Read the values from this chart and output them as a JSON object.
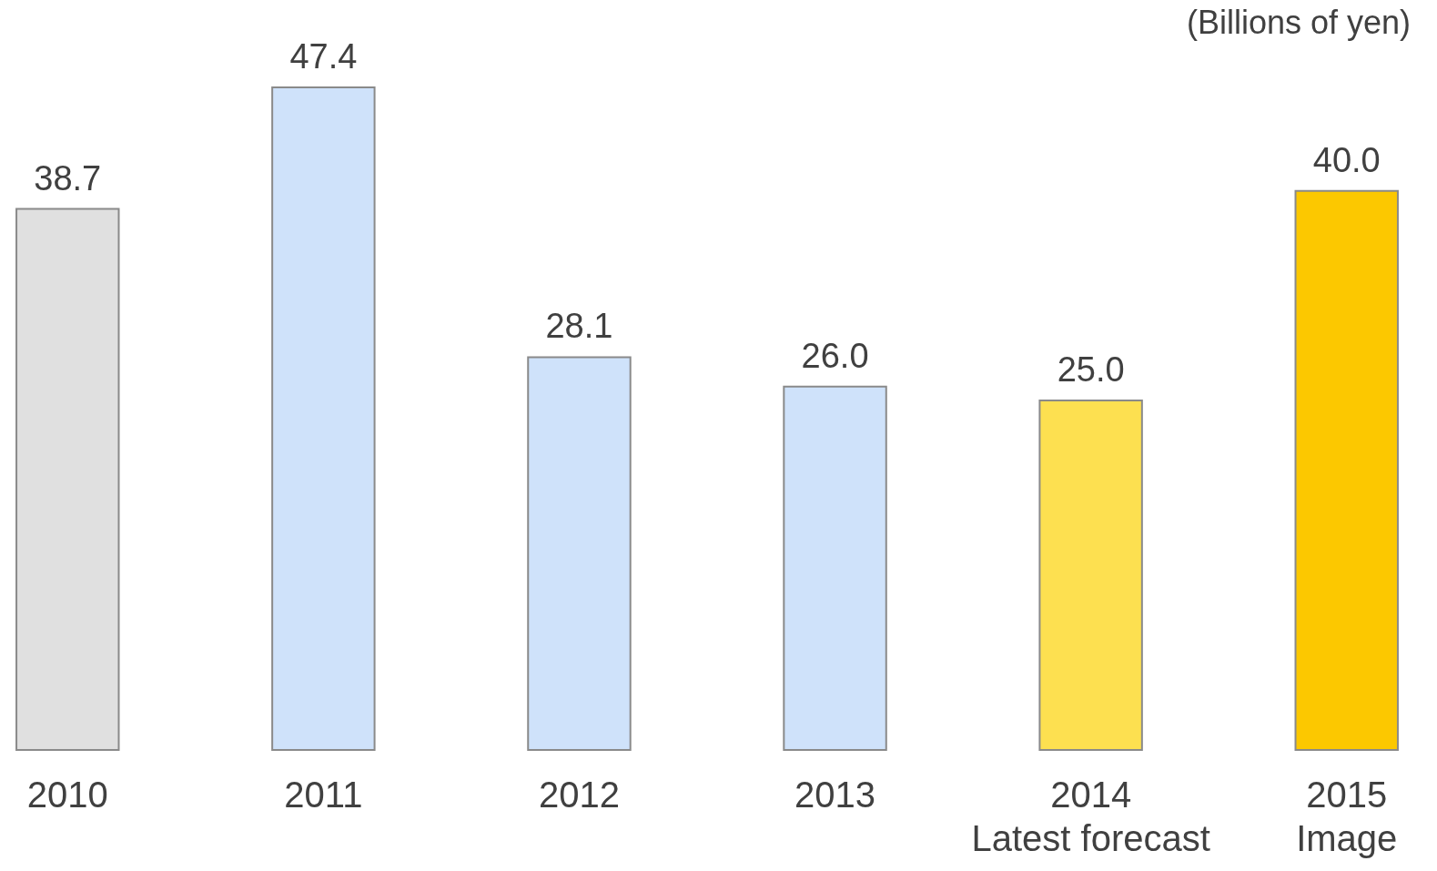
{
  "chart_data": {
    "type": "bar",
    "categories": [
      "2010",
      "2011",
      "2012",
      "2013",
      "2014\nLatest forecast",
      "2015\nImage"
    ],
    "values": [
      38.7,
      47.4,
      28.1,
      26.0,
      25.0,
      40.0
    ],
    "colors": [
      "#e0e0e0",
      "#cfe2fa",
      "#cfe2fa",
      "#cfe2fa",
      "#fde050",
      "#fcc800"
    ],
    "value_labels": [
      "38.7",
      "47.4",
      "28.1",
      "26.0",
      "25.0",
      "40.0"
    ],
    "annotations": [
      "(Billions of yen)"
    ]
  }
}
